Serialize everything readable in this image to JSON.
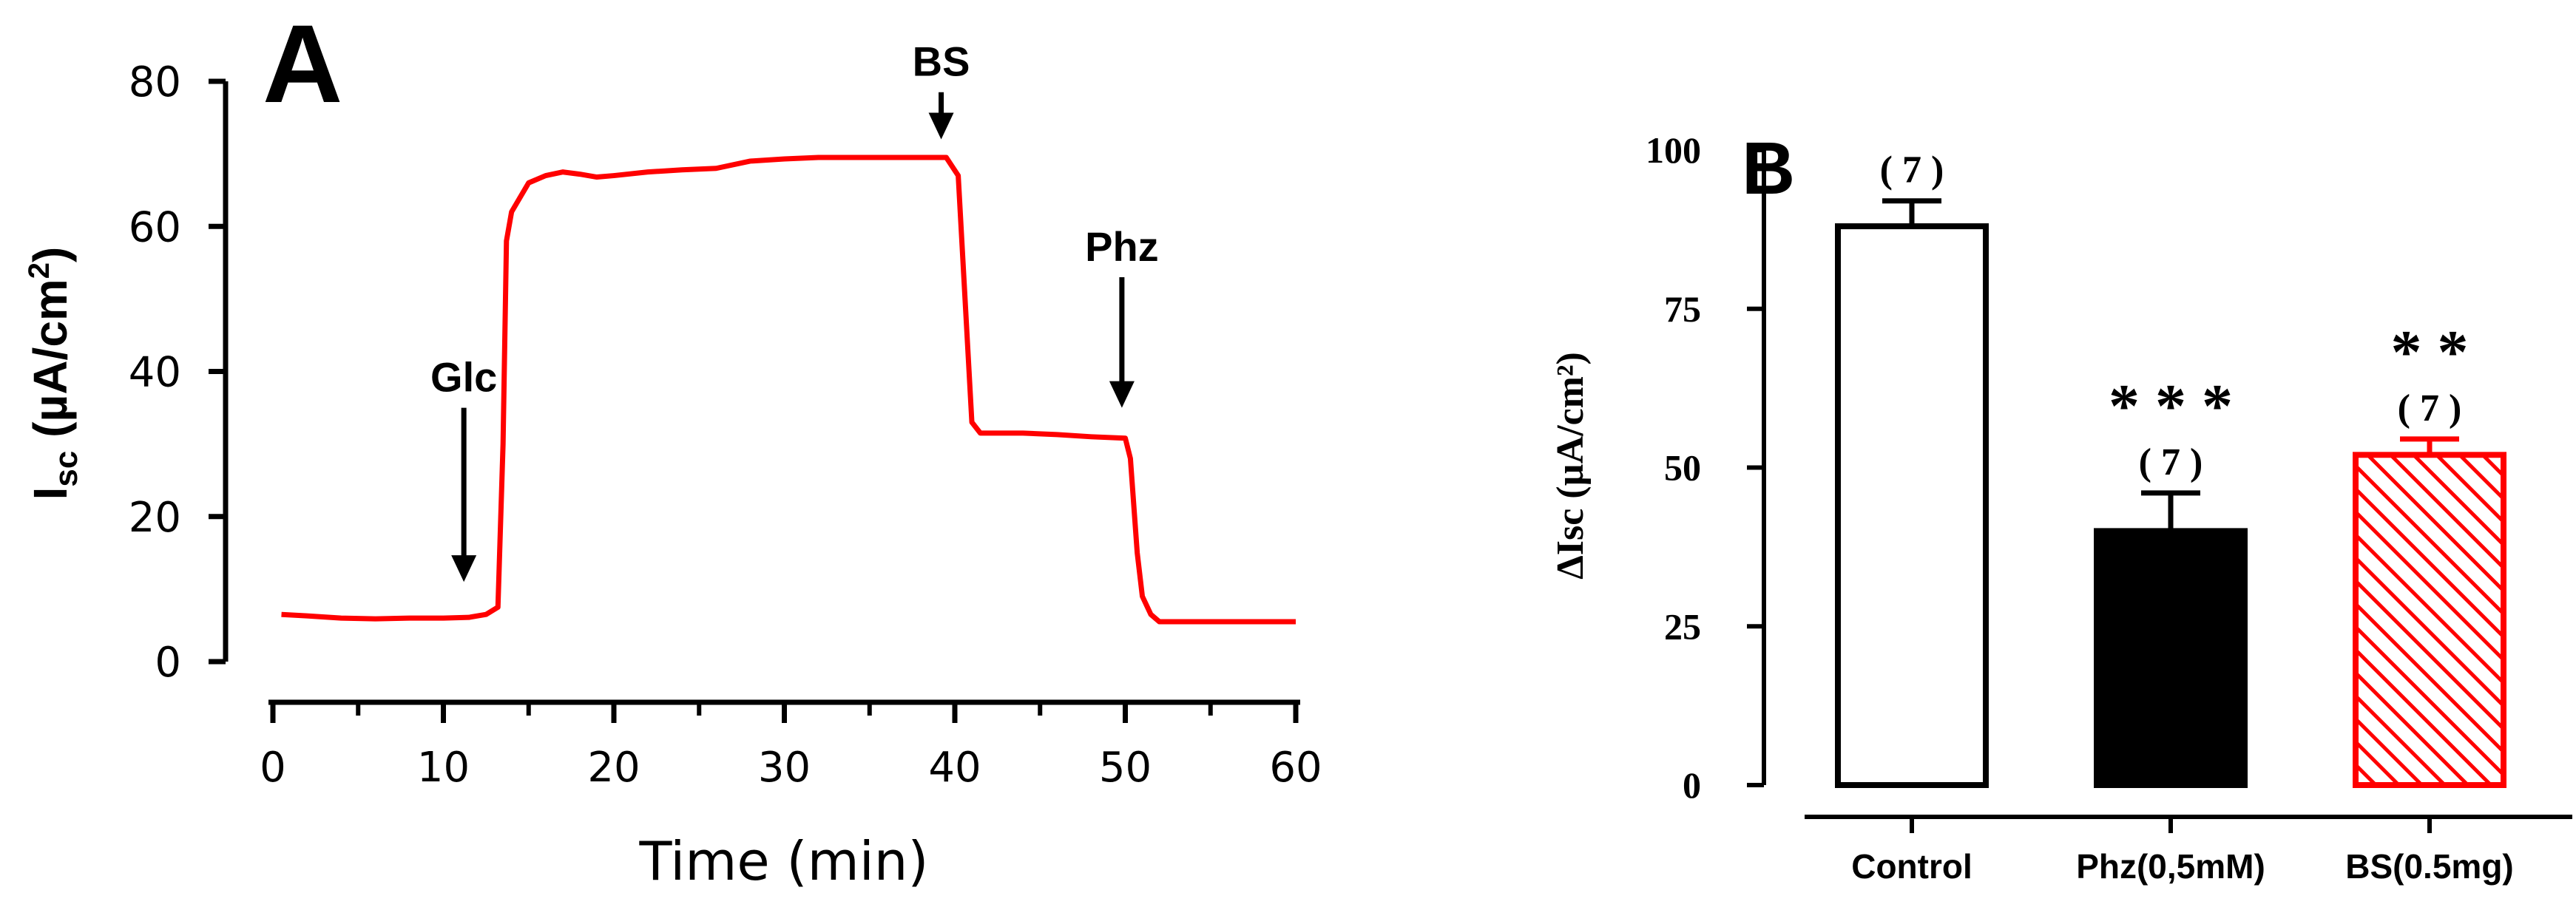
{
  "chart_data": [
    {
      "panel_label": "A",
      "type": "line",
      "xlabel": "Time (min)",
      "ylabel_main": "I",
      "ylabel_sub": "sc",
      "ylabel_rest": " (µA/cm",
      "ylabel_sup": "2",
      "ylabel_close": ")",
      "xlim": [
        0,
        60
      ],
      "ylim": [
        0,
        80
      ],
      "xticks": [
        0,
        10,
        20,
        30,
        40,
        50,
        60
      ],
      "yticks": [
        0,
        20,
        40,
        60,
        80
      ],
      "series": [
        {
          "color": "#ff0000",
          "x": [
            0.5,
            2,
            4,
            6,
            8,
            10,
            11.5,
            12.5,
            13.2,
            13.5,
            13.7,
            14,
            14.5,
            15,
            16,
            17,
            18,
            19,
            20,
            22,
            24,
            26,
            28,
            30,
            32,
            34,
            36,
            38,
            39.5,
            40.2,
            40.6,
            41,
            41.5,
            42,
            44,
            46,
            48,
            50,
            50.3,
            50.7,
            51,
            51.5,
            52,
            54,
            56,
            58,
            60
          ],
          "y": [
            6.5,
            6.3,
            6.0,
            5.9,
            6.0,
            6.0,
            6.1,
            6.5,
            7.5,
            30,
            58,
            62,
            64,
            66,
            67,
            67.5,
            67.2,
            66.8,
            67,
            67.5,
            67.8,
            68,
            69,
            69.3,
            69.5,
            69.5,
            69.5,
            69.5,
            69.5,
            67,
            50,
            33,
            31.5,
            31.5,
            31.5,
            31.3,
            31.0,
            30.8,
            28,
            15,
            9,
            6.5,
            5.5,
            5.5,
            5.5,
            5.5,
            5.5
          ]
        }
      ],
      "annotations": [
        {
          "text": "Glc",
          "x": 11.2,
          "y_tip": 11,
          "y_tail": 35
        },
        {
          "text": "BS",
          "x": 39.2,
          "y_tip": 72,
          "y_tail": 78.5
        },
        {
          "text": "Phz",
          "x": 49.8,
          "y_tip": 35,
          "y_tail": 53
        }
      ]
    },
    {
      "panel_label": "B",
      "type": "bar",
      "ylabel": "ΔIsc (µA/cm²)",
      "ylim": [
        0,
        100
      ],
      "yticks": [
        0,
        25,
        50,
        75,
        100
      ],
      "categories": [
        "Control",
        "Phz(0,5mM)",
        "BS(0.5mg)"
      ],
      "values": [
        88,
        40,
        52
      ],
      "errors": [
        4,
        6,
        2.5
      ],
      "n_labels": [
        "( 7 )",
        "( 7 )",
        "( 7 )"
      ],
      "significance": [
        "",
        "* * *",
        "* *"
      ],
      "fills": [
        "#ffffff",
        "#000000",
        "hatched-red"
      ],
      "colors": {
        "black": "#000000",
        "red": "#ff0000"
      }
    }
  ]
}
